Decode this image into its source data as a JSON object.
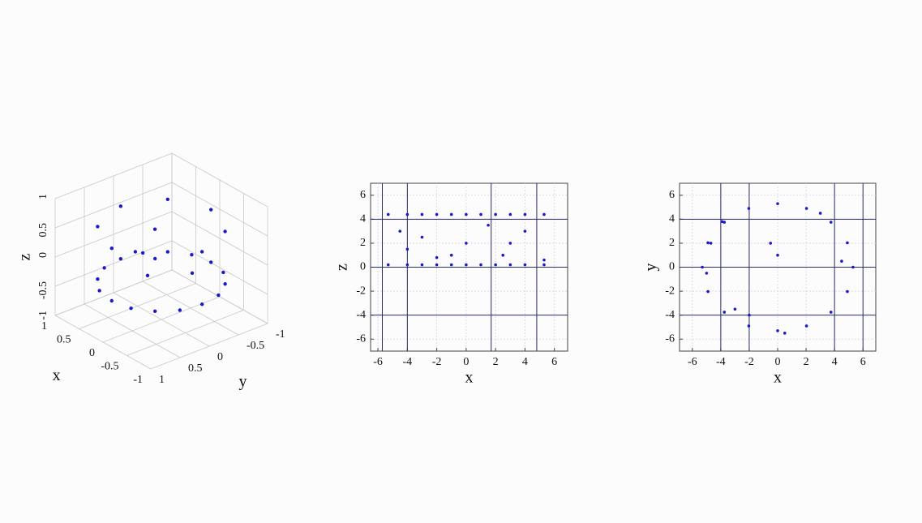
{
  "chart_data": [
    {
      "type": "scatter3d",
      "xlabel": "x",
      "ylabel": "y",
      "zlabel": "z",
      "xlim": [
        -1,
        1
      ],
      "ylim": [
        -1,
        1
      ],
      "zlim": [
        -1,
        1
      ],
      "xticks": [
        -1,
        -0.5,
        0,
        0.5,
        1
      ],
      "yticks": [
        -1,
        -0.5,
        0,
        0.5,
        1
      ],
      "zticks": [
        -1,
        -0.5,
        0,
        0.5,
        1
      ],
      "color": "#1a1acc",
      "x": [
        0.85,
        0.79,
        0.6,
        0.33,
        0,
        -0.33,
        -0.6,
        -0.79,
        -0.85,
        -0.79,
        -0.6,
        -0.33,
        0,
        0.33,
        0.6,
        0.79,
        0.85,
        0.6,
        0,
        -0.6,
        -0.85,
        -0.6,
        0,
        0.6,
        0.3,
        -0.2,
        0.5,
        -0.4
      ],
      "y": [
        0,
        0.33,
        0.6,
        0.79,
        0.85,
        0.79,
        0.6,
        0.33,
        0,
        -0.33,
        -0.6,
        -0.79,
        -0.85,
        -0.79,
        -0.6,
        -0.33,
        0,
        0.6,
        0.85,
        0.6,
        0,
        -0.6,
        -0.85,
        -0.6,
        0.2,
        0.4,
        -0.3,
        -0.2
      ],
      "z": [
        -0.35,
        -0.35,
        -0.35,
        -0.35,
        -0.35,
        -0.35,
        -0.35,
        -0.35,
        -0.35,
        -0.35,
        -0.35,
        -0.35,
        -0.35,
        -0.35,
        -0.35,
        -0.35,
        0.55,
        0.55,
        0.55,
        0.55,
        0.55,
        0.55,
        0.55,
        0.55,
        0.1,
        0,
        0.2,
        -0.1
      ]
    },
    {
      "type": "scatter",
      "xlabel": "x",
      "ylabel": "z",
      "xlim": [
        -6.5,
        6.9
      ],
      "ylim": [
        -7,
        7
      ],
      "xticks": [
        -6,
        -4,
        -2,
        0,
        2,
        4,
        6
      ],
      "yticks": [
        -6,
        -4,
        -2,
        0,
        2,
        4,
        6
      ],
      "grid": true,
      "vlines": [
        -5.7,
        -4,
        1.7,
        4.8
      ],
      "hlines": [
        4,
        0,
        -4
      ],
      "color": "#1a1acc",
      "x": [
        -5.3,
        -4,
        -3,
        -2,
        -1,
        0,
        1,
        2,
        3,
        4,
        5.3,
        -5.3,
        -4,
        -3,
        -2,
        -1,
        0,
        1,
        2,
        3,
        4,
        5.3,
        -4.5,
        -4,
        -3,
        -1,
        0,
        1.5,
        3,
        4,
        -2,
        2.5,
        5.3
      ],
      "y": [
        4.4,
        4.4,
        4.4,
        4.4,
        4.4,
        4.4,
        4.4,
        4.4,
        4.4,
        4.4,
        4.4,
        0.2,
        0.2,
        0.2,
        0.2,
        0.2,
        0.2,
        0.2,
        0.2,
        0.2,
        0.2,
        0.2,
        3,
        1.5,
        2.5,
        1,
        2,
        3.5,
        2,
        3,
        0.8,
        1,
        0.6
      ]
    },
    {
      "type": "scatter",
      "xlabel": "x",
      "ylabel": "y",
      "xlim": [
        -6.9,
        6.9
      ],
      "ylim": [
        -7,
        7
      ],
      "xticks": [
        -6,
        -4,
        -2,
        0,
        2,
        4,
        6
      ],
      "yticks": [
        -6,
        -4,
        -2,
        0,
        2,
        4,
        6
      ],
      "grid": true,
      "vlines": [
        -4,
        -2,
        4,
        6
      ],
      "hlines": [
        4,
        0,
        -4
      ],
      "color": "#1a1acc",
      "x": [
        5.3,
        4.9,
        3.75,
        2.03,
        0,
        -2.03,
        -3.75,
        -4.9,
        -5.3,
        -4.9,
        -3.75,
        -2.03,
        0,
        2.03,
        3.75,
        4.9,
        -4.7,
        -3.9,
        3,
        4.5,
        -5,
        -3,
        -2,
        0.5,
        -0.5,
        0
      ],
      "y": [
        0,
        2.03,
        3.75,
        4.9,
        5.3,
        4.9,
        3.75,
        2.03,
        0,
        -2.03,
        -3.75,
        -4.9,
        -5.3,
        -4.9,
        -3.75,
        -2.03,
        2,
        3.8,
        4.5,
        0.5,
        -0.5,
        -3.5,
        -4,
        -5.5,
        2,
        1
      ]
    }
  ]
}
